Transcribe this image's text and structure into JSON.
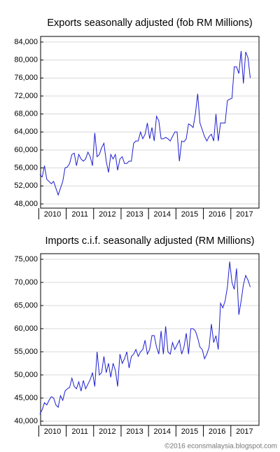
{
  "chart_data": [
    {
      "type": "line",
      "title": "Exports seasonally adjusted (fob RM Millions)",
      "categories": [
        "2010",
        null,
        null,
        null,
        null,
        null,
        null,
        null,
        null,
        null,
        null,
        null,
        "2011",
        null,
        null,
        null,
        null,
        null,
        null,
        null,
        null,
        null,
        null,
        null,
        "2012",
        null,
        null,
        null,
        null,
        null,
        null,
        null,
        null,
        null,
        null,
        null,
        "2013",
        null,
        null,
        null,
        null,
        null,
        null,
        null,
        null,
        null,
        null,
        null,
        "2014",
        null,
        null,
        null,
        null,
        null,
        null,
        null,
        null,
        null,
        null,
        null,
        "2015",
        null,
        null,
        null,
        null,
        null,
        null,
        null,
        null,
        null,
        null,
        null,
        "2016",
        null,
        null,
        null,
        null,
        null,
        null,
        null,
        null,
        null,
        null,
        null,
        "2017",
        null,
        null,
        null,
        null,
        null,
        null,
        null,
        null
      ],
      "values": [
        54500,
        54000,
        56500,
        53500,
        53000,
        52500,
        53000,
        51500,
        50000,
        51500,
        53000,
        56000,
        56200,
        57000,
        59000,
        59300,
        56500,
        59000,
        58000,
        57500,
        58000,
        59500,
        58500,
        56500,
        63800,
        58500,
        59000,
        60500,
        61500,
        57500,
        55000,
        59000,
        58000,
        59000,
        55500,
        58000,
        58500,
        57000,
        57000,
        57500,
        57500,
        61500,
        62000,
        62000,
        64000,
        62500,
        63500,
        66000,
        62500,
        65000,
        62000,
        67500,
        66500,
        62500,
        62500,
        62800,
        62500,
        62000,
        63000,
        64000,
        64000,
        57500,
        62000,
        61800,
        62500,
        65800,
        65500,
        65000,
        68000,
        72500,
        66000,
        64500,
        63000,
        62000,
        63000,
        63500,
        62000,
        68000,
        62000,
        66000,
        66000,
        66000,
        71000,
        71300,
        71500,
        78500,
        78500,
        77000,
        82000,
        74800,
        81800,
        80500,
        76000
      ],
      "color": "#1f1fd0",
      "ylim": [
        48000,
        84000
      ],
      "yticks": [
        {
          "value": 48000,
          "label": "48,000"
        },
        {
          "value": 52000,
          "label": "52,000"
        },
        {
          "value": 56000,
          "label": "56,000"
        },
        {
          "value": 60000,
          "label": "60,000"
        },
        {
          "value": 64000,
          "label": "64,000"
        },
        {
          "value": 68000,
          "label": "68,000"
        },
        {
          "value": 72000,
          "label": "72,000"
        },
        {
          "value": 76000,
          "label": "76,000"
        },
        {
          "value": 80000,
          "label": "80,000"
        },
        {
          "value": 84000,
          "label": "84,000"
        }
      ],
      "grid": true
    },
    {
      "type": "line",
      "title": "Imports c.i.f. seasonally adjusted (RM Millions)",
      "categories": [
        "2010",
        null,
        null,
        null,
        null,
        null,
        null,
        null,
        null,
        null,
        null,
        null,
        "2011",
        null,
        null,
        null,
        null,
        null,
        null,
        null,
        null,
        null,
        null,
        null,
        "2012",
        null,
        null,
        null,
        null,
        null,
        null,
        null,
        null,
        null,
        null,
        null,
        "2013",
        null,
        null,
        null,
        null,
        null,
        null,
        null,
        null,
        null,
        null,
        null,
        "2014",
        null,
        null,
        null,
        null,
        null,
        null,
        null,
        null,
        null,
        null,
        null,
        "2015",
        null,
        null,
        null,
        null,
        null,
        null,
        null,
        null,
        null,
        null,
        null,
        "2016",
        null,
        null,
        null,
        null,
        null,
        null,
        null,
        null,
        null,
        null,
        null,
        "2017",
        null,
        null,
        null,
        null,
        null,
        null,
        null,
        null
      ],
      "values": [
        41500,
        42500,
        44000,
        43500,
        44500,
        45300,
        45000,
        43500,
        43000,
        45500,
        44500,
        46500,
        47000,
        47300,
        49300,
        47500,
        47000,
        48500,
        46500,
        48800,
        47000,
        48000,
        49000,
        50500,
        47500,
        55000,
        50000,
        50500,
        54000,
        50500,
        52500,
        49500,
        52500,
        51000,
        47500,
        54500,
        52500,
        53500,
        55000,
        51500,
        54000,
        54500,
        55500,
        54000,
        55000,
        55500,
        57500,
        54500,
        55500,
        58500,
        58500,
        56000,
        54500,
        59500,
        54500,
        60500,
        55000,
        54500,
        57000,
        55500,
        56500,
        57500,
        54500,
        56000,
        59000,
        54500,
        60000,
        60000,
        59500,
        58000,
        56000,
        55500,
        53500,
        54500,
        56000,
        61000,
        57000,
        58500,
        55500,
        65500,
        64500,
        66000,
        69000,
        74500,
        70000,
        68500,
        73000,
        63000,
        66000,
        69500,
        71500,
        70500,
        69000
      ],
      "color": "#1f1fd0",
      "ylim": [
        40000,
        75000
      ],
      "yticks": [
        {
          "value": 40000,
          "label": "40,000"
        },
        {
          "value": 45000,
          "label": "45,000"
        },
        {
          "value": 50000,
          "label": "50,000"
        },
        {
          "value": 55000,
          "label": "55,000"
        },
        {
          "value": 60000,
          "label": "60,000"
        },
        {
          "value": 65000,
          "label": "65,000"
        },
        {
          "value": 70000,
          "label": "70,000"
        },
        {
          "value": 75000,
          "label": "75,000"
        }
      ],
      "grid": true
    }
  ],
  "footer": "©2016 econsmalaysia.blogspot.com"
}
